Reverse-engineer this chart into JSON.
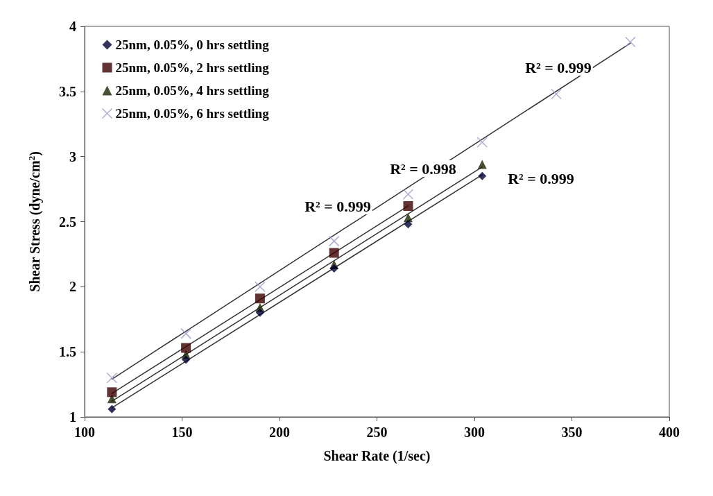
{
  "chart_data": {
    "type": "scatter",
    "xlabel": "Shear Rate (1/sec)",
    "ylabel": "Shear Stress (dyne/cm$^{2}$)",
    "xlim": [
      100,
      400
    ],
    "xticks": [
      100,
      150,
      200,
      250,
      300,
      350,
      400
    ],
    "ylim": [
      1,
      4
    ],
    "yticks": [
      1,
      1.5,
      2,
      2.5,
      3,
      3.5,
      4
    ],
    "grid": false,
    "legend": "top left",
    "series": [
      {
        "name": "25nm, 0.05%, 0 hrs settling",
        "marker": "diamond",
        "color": "#000033",
        "x": [
          114,
          152,
          190,
          228,
          266,
          304
        ],
        "values": [
          1.06,
          1.44,
          1.8,
          2.14,
          2.48,
          2.85
        ]
      },
      {
        "name": "25nm, 0.05%, 2 hrs settling",
        "marker": "square",
        "color": "#3b0000",
        "x": [
          114,
          152,
          190,
          228,
          266
        ],
        "values": [
          1.19,
          1.53,
          1.91,
          2.26,
          2.62
        ]
      },
      {
        "name": "25nm, 0.05%, 4 hrs settling",
        "marker": "triangle",
        "color": "#1a2600",
        "x": [
          114,
          152,
          190,
          228,
          266,
          304
        ],
        "values": [
          1.14,
          1.48,
          1.84,
          2.17,
          2.53,
          2.94
        ]
      },
      {
        "name": "25nm, 0.05%, 6 hrs settling",
        "marker": "cross",
        "color": "#9999cc",
        "x": [
          114,
          152,
          190,
          228,
          266,
          304,
          342,
          380
        ],
        "values": [
          1.3,
          1.64,
          2.0,
          2.35,
          2.71,
          3.11,
          3.48,
          3.88
        ]
      },
      {
        "type": "line",
        "marker": "none",
        "line_style": "solid",
        "color": "#333333",
        "x": [
          114,
          304
        ],
        "values": [
          1.07,
          2.86
        ]
      },
      {
        "type": "line",
        "marker": "none",
        "line_style": "solid",
        "color": "#333333",
        "x": [
          114,
          266
        ],
        "values": [
          1.18,
          2.62
        ]
      },
      {
        "type": "line",
        "marker": "none",
        "line_style": "solid",
        "color": "#333333",
        "x": [
          114,
          304
        ],
        "values": [
          1.12,
          2.92
        ]
      },
      {
        "type": "line",
        "marker": "none",
        "line_style": "solid",
        "color": "#333333",
        "x": [
          114,
          380
        ],
        "values": [
          1.29,
          3.87
        ]
      }
    ],
    "annotations": [
      "R² = 0.999",
      "R² = 0.998",
      "R² = 0.999",
      "R² = 0.999"
    ]
  }
}
